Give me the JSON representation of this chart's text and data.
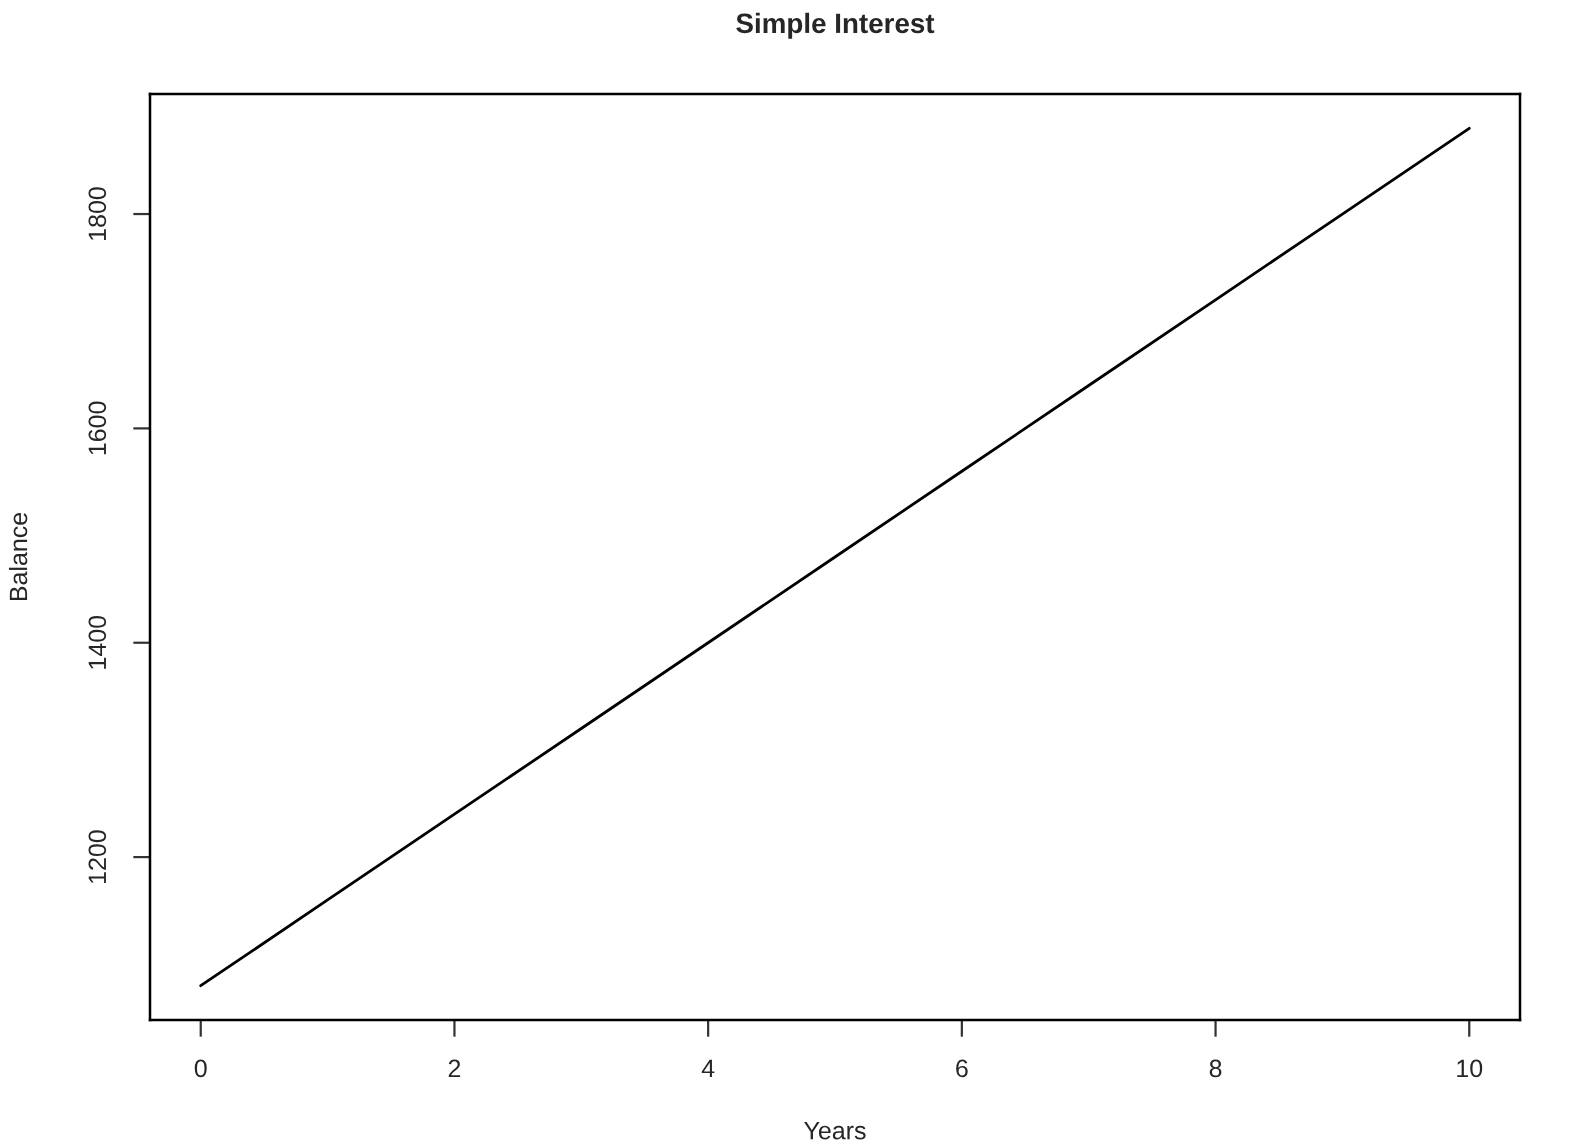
{
  "chart_data": {
    "type": "line",
    "title": "Simple Interest",
    "xlabel": "Years",
    "ylabel": "Balance",
    "x": [
      0,
      1,
      2,
      3,
      4,
      5,
      6,
      7,
      8,
      9,
      10
    ],
    "series": [
      {
        "color": "#000000",
        "values": [
          1080,
          1160,
          1240,
          1320,
          1400,
          1480,
          1560,
          1640,
          1720,
          1800,
          1880
        ]
      }
    ],
    "xlim": [
      -0.4,
      10.4
    ],
    "ylim": [
      1048,
      1912
    ],
    "xticks": [
      0,
      2,
      4,
      6,
      8,
      10
    ],
    "yticks": [
      1200,
      1400,
      1600,
      1800
    ],
    "grid": false,
    "legend": false,
    "marker": "none",
    "line_style": "solid"
  }
}
